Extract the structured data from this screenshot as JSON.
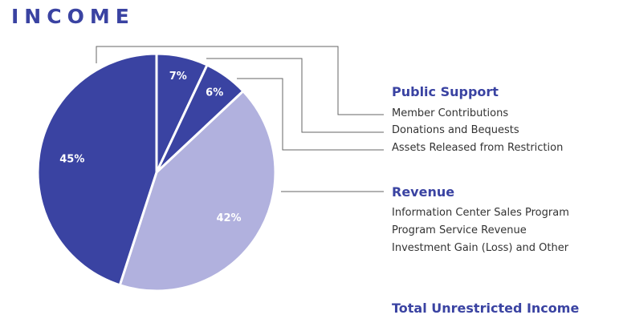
{
  "title": "INCOME",
  "colors": {
    "dark": "#3a43a2",
    "light": "#b1b1de",
    "line": "#666666"
  },
  "chart_data": {
    "type": "pie",
    "slices": [
      {
        "label": "7%",
        "value": 7,
        "color": "#3a43a2"
      },
      {
        "label": "6%",
        "value": 6,
        "color": "#3a43a2"
      },
      {
        "label": "42%",
        "value": 42,
        "color": "#b1b1de"
      },
      {
        "label": "45%",
        "value": 45,
        "color": "#3a43a2"
      }
    ]
  },
  "legend": {
    "public_support": {
      "heading": "Public Support",
      "items": [
        "Member Contributions",
        "Donations and Bequests",
        "Assets Released from Restriction"
      ]
    },
    "revenue": {
      "heading": "Revenue",
      "items": [
        "Information Center Sales Program",
        "Program Service Revenue",
        "Investment Gain (Loss) and Other"
      ]
    },
    "total": "Total Unrestricted Income"
  }
}
